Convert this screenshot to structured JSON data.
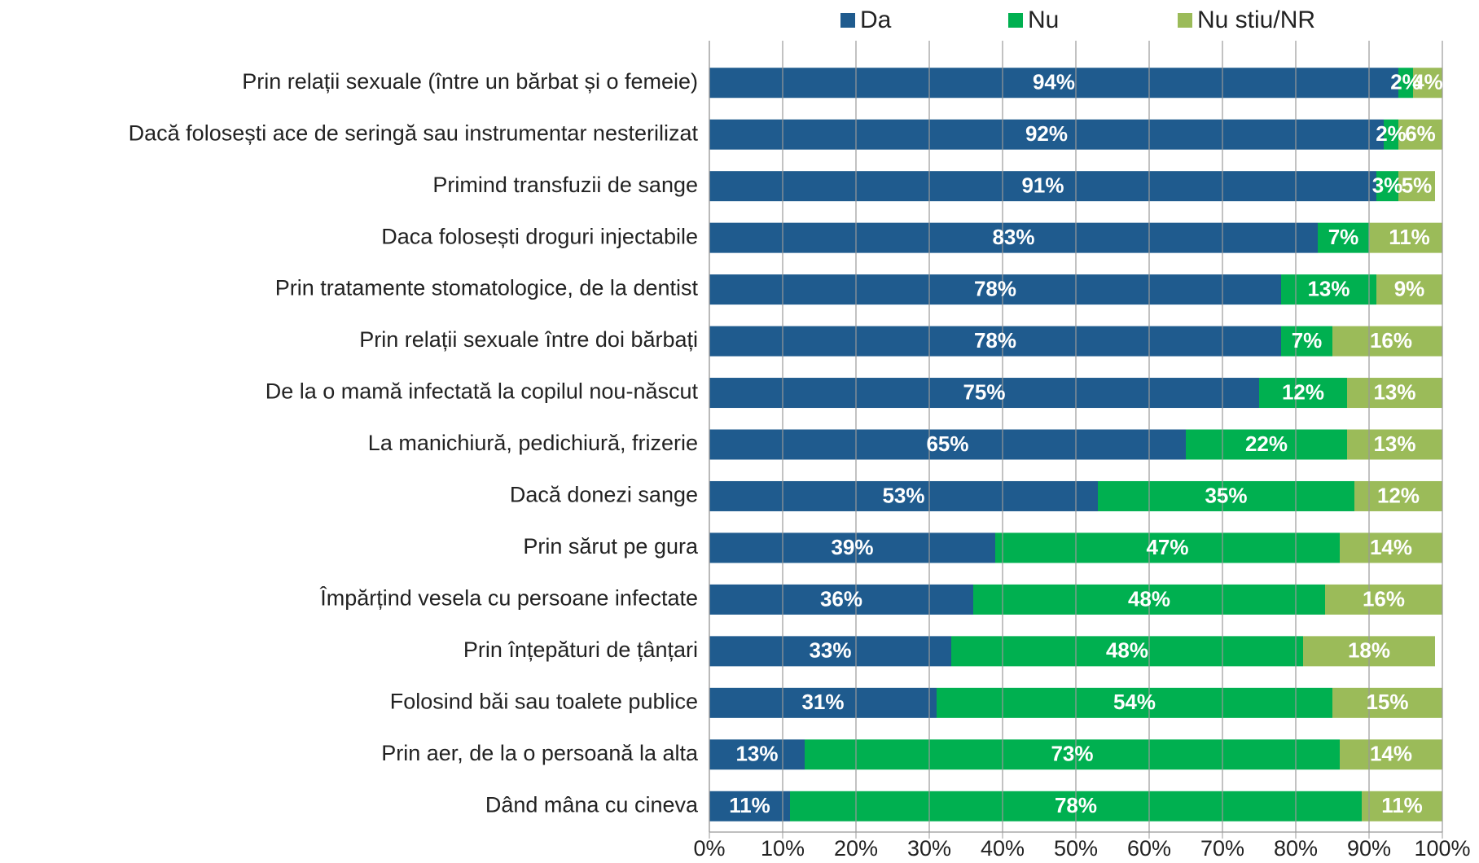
{
  "chart_data": {
    "type": "stacked_bar_horizontal",
    "categories": [
      "Prin relații sexuale (între un bărbat și o femeie)",
      "Dacă folosești ace de seringă sau instrumentar nesterilizat",
      "Primind transfuzii de sange",
      "Daca folosești droguri injectabile",
      "Prin tratamente stomatologice, de la dentist",
      "Prin relații sexuale între doi bărbați",
      "De la o mamă infectată la copilul nou-născut",
      "La manichiură, pedichiură, frizerie",
      "Dacă donezi sange",
      "Prin sărut pe gura",
      "Împărțind vesela cu persoane infectate",
      "Prin înțepături de țânțari",
      "Folosind băi sau toalete publice",
      "Prin aer, de la o persoană la alta",
      "Dând mâna cu cineva"
    ],
    "series": [
      {
        "name": "Da",
        "color": "#1f5b8e",
        "values": [
          94,
          92,
          91,
          83,
          78,
          78,
          75,
          65,
          53,
          39,
          36,
          33,
          31,
          13,
          11
        ],
        "value_labels": [
          "94%",
          "92%",
          "91%",
          "83%",
          "78%",
          "78%",
          "75%",
          "65%",
          "53%",
          "39%",
          "36%",
          "33%",
          "31%",
          "13%",
          "11%"
        ]
      },
      {
        "name": "Nu",
        "color": "#00b050",
        "values": [
          2,
          2,
          3,
          7,
          13,
          7,
          12,
          22,
          35,
          47,
          48,
          48,
          54,
          73,
          78
        ],
        "value_labels": [
          "2%",
          "2%",
          "3%",
          "7%",
          "13%",
          "7%",
          "12%",
          "22%",
          "35%",
          "47%",
          "48%",
          "48%",
          "54%",
          "73%",
          "78%"
        ]
      },
      {
        "name": "Nu stiu/NR",
        "color": "#9bbb59",
        "values": [
          4,
          6,
          5,
          11,
          9,
          16,
          13,
          13,
          12,
          14,
          16,
          18,
          15,
          14,
          11
        ],
        "value_labels": [
          "4%",
          "6%",
          "5%",
          "11%",
          "9%",
          "16%",
          "13%",
          "13%",
          "12%",
          "14%",
          "16%",
          "18%",
          "15%",
          "14%",
          "11%"
        ]
      }
    ],
    "xlim": [
      0,
      100
    ],
    "xticks": [
      {
        "value": 0,
        "label": "0%"
      },
      {
        "value": 10,
        "label": "10%"
      },
      {
        "value": 20,
        "label": "20%"
      },
      {
        "value": 30,
        "label": "30%"
      },
      {
        "value": 40,
        "label": "40%"
      },
      {
        "value": 50,
        "label": "50%"
      },
      {
        "value": 60,
        "label": "60%"
      },
      {
        "value": 70,
        "label": "70%"
      },
      {
        "value": 80,
        "label": "80%"
      },
      {
        "value": 90,
        "label": "90%"
      },
      {
        "value": 100,
        "label": "100%"
      }
    ],
    "grid": true,
    "legend": "top"
  }
}
